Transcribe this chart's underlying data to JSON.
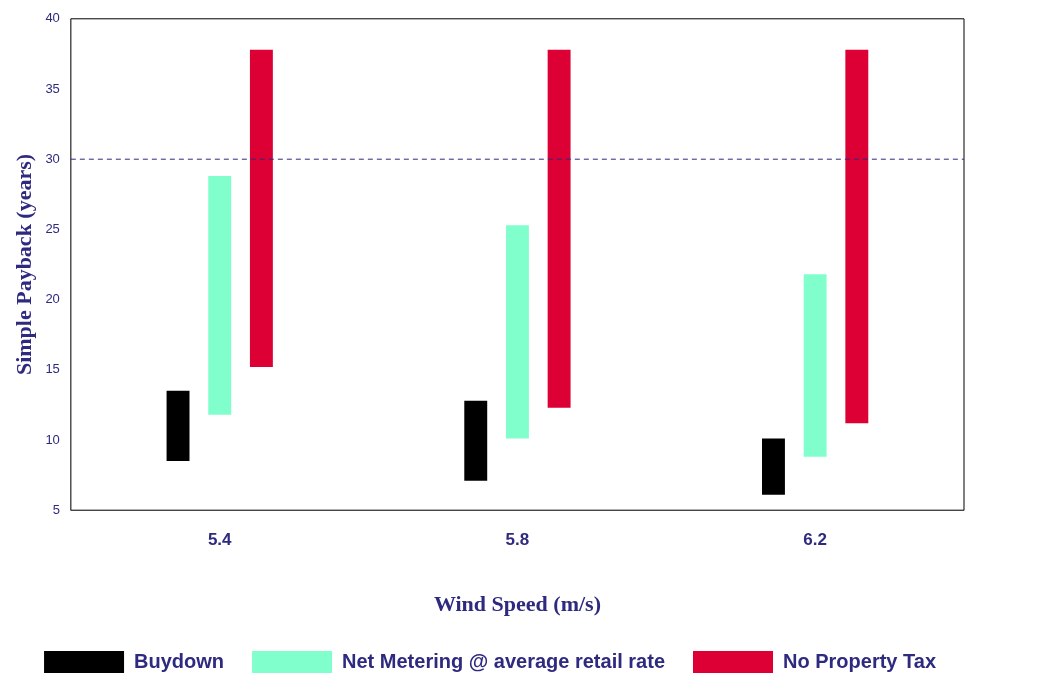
{
  "chart_data": {
    "type": "bar",
    "xlabel": "Wind Speed (m/s)",
    "ylabel": "Simple Payback (years)",
    "categories": [
      "5.4",
      "5.8",
      "6.2"
    ],
    "series": [
      {
        "name": "Buydown",
        "color": "#000000",
        "base": [
          8.5,
          7.1,
          6.1
        ],
        "values": [
          5.0,
          5.7,
          4.0
        ]
      },
      {
        "name": "Net Metering @ average retail rate",
        "color": "#80ffcc",
        "base": [
          11.8,
          10.1,
          8.8
        ],
        "values": [
          17.0,
          15.2,
          13.0
        ]
      },
      {
        "name": "No Property Tax",
        "color": "#dc0035",
        "base": [
          15.2,
          12.3,
          11.2
        ],
        "values": [
          22.6,
          25.5,
          26.6
        ]
      }
    ],
    "ylim": [
      5,
      40
    ],
    "yticks": [
      5,
      10,
      15,
      20,
      25,
      30,
      35,
      40
    ],
    "ref_lines": [
      {
        "axis": "y",
        "value": 30,
        "color": "#2e2a7f",
        "line_style": "dashed"
      }
    ],
    "grid": false,
    "legend": "bottom right"
  }
}
